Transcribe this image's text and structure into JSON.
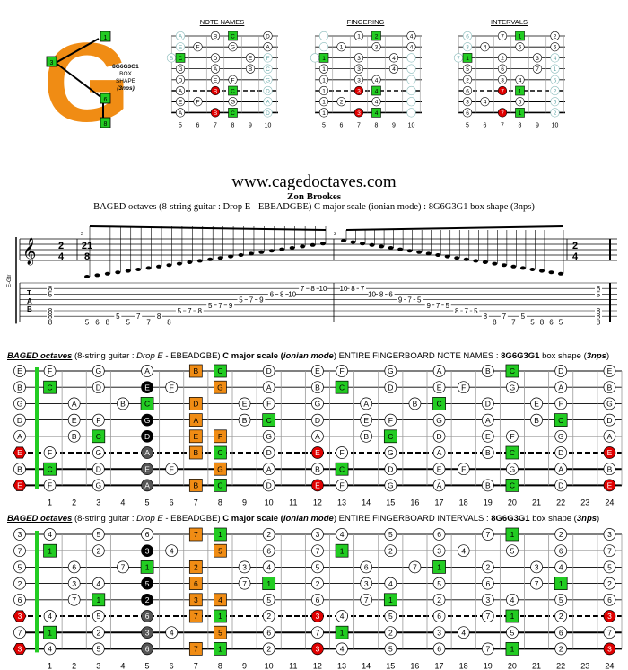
{
  "logo": {
    "letter": "G",
    "code": "8G6G3G1",
    "line2": "BOX",
    "line3": "SHAPE",
    "line4": "(3nps)",
    "markers": [
      "1",
      "3",
      "6",
      "8"
    ]
  },
  "mini_diagrams": [
    {
      "title": "NOTE NAMES",
      "kind": "notes"
    },
    {
      "title": "FINGERING",
      "kind": "fingers"
    },
    {
      "title": "INTERVALS",
      "kind": "intervals"
    }
  ],
  "mini_frets": [
    "5",
    "6",
    "7",
    "8",
    "9",
    "10"
  ],
  "header": {
    "site": "www.cagedoctaves.com",
    "author": "Zon Brookes",
    "subtitle": "BAGED octaves (8-string guitar : Drop E - EBEADGBE) C major scale (ionian mode) : 8G6G3G1 box shape (3nps)"
  },
  "staff": {
    "time_sig": "2/4",
    "tuplet": "21/8",
    "clef_label": "E-Gtr",
    "tab_label": "TAB",
    "bar2": "2",
    "bar3": "3",
    "tab_asc": [
      {
        "s": 7,
        "f": "5"
      },
      {
        "s": 7,
        "f": "6"
      },
      {
        "s": 7,
        "f": "8"
      },
      {
        "s": 6,
        "f": "5"
      },
      {
        "s": 7,
        "f": "5"
      },
      {
        "s": 6,
        "f": "7"
      },
      {
        "s": 7,
        "f": "7"
      },
      {
        "s": 6,
        "f": "8"
      },
      {
        "s": 7,
        "f": "8"
      },
      {
        "s": 5,
        "f": "5"
      },
      {
        "s": 5,
        "f": "7"
      },
      {
        "s": 5,
        "f": "8"
      },
      {
        "s": 4,
        "f": "5"
      },
      {
        "s": 4,
        "f": "7"
      },
      {
        "s": 4,
        "f": "9"
      },
      {
        "s": 3,
        "f": "5"
      },
      {
        "s": 3,
        "f": "7"
      },
      {
        "s": 3,
        "f": "9"
      },
      {
        "s": 2,
        "f": "6"
      },
      {
        "s": 2,
        "f": "8"
      },
      {
        "s": 2,
        "f": "10"
      },
      {
        "s": 1,
        "f": "7"
      },
      {
        "s": 1,
        "f": "8"
      },
      {
        "s": 1,
        "f": "10"
      }
    ],
    "tab_desc": [
      {
        "s": 1,
        "f": "10"
      },
      {
        "s": 1,
        "f": "8"
      },
      {
        "s": 1,
        "f": "7"
      },
      {
        "s": 2,
        "f": "10"
      },
      {
        "s": 2,
        "f": "8"
      },
      {
        "s": 2,
        "f": "6"
      },
      {
        "s": 3,
        "f": "9"
      },
      {
        "s": 3,
        "f": "7"
      },
      {
        "s": 3,
        "f": "5"
      },
      {
        "s": 4,
        "f": "9"
      },
      {
        "s": 4,
        "f": "7"
      },
      {
        "s": 4,
        "f": "5"
      },
      {
        "s": 5,
        "f": "8"
      },
      {
        "s": 5,
        "f": "7"
      },
      {
        "s": 5,
        "f": "5"
      },
      {
        "s": 6,
        "f": "8"
      },
      {
        "s": 7,
        "f": "8"
      },
      {
        "s": 6,
        "f": "7"
      },
      {
        "s": 7,
        "f": "7"
      },
      {
        "s": 6,
        "f": "5"
      },
      {
        "s": 7,
        "f": "5"
      },
      {
        "s": 7,
        "f": "8"
      },
      {
        "s": 7,
        "f": "6"
      },
      {
        "s": 7,
        "f": "5"
      }
    ],
    "tab_end_chord": [
      {
        "s": 1,
        "f": "8"
      },
      {
        "s": 2,
        "f": "5"
      },
      {
        "s": 5,
        "f": "8"
      },
      {
        "s": 6,
        "f": "8"
      },
      {
        "s": 7,
        "f": "8"
      }
    ]
  },
  "caption_notes": {
    "a": "BAGED octaves",
    "b": " (8-string guitar : ",
    "c": "Drop E",
    "d": " - EBEADGBE) ",
    "e": "C major scale",
    "f": " (",
    "g": "ionian mode",
    "h": ") ENTIRE FINGERBOARD NOTE NAMES : ",
    "i": "8G6G3G1",
    "j": " box shape (",
    "k": "3nps",
    "l": ")"
  },
  "caption_intervals": {
    "a": "BAGED octaves",
    "b": " (8-string guitar : ",
    "c": "Drop E",
    "d": " - EBEADGBE) ",
    "e": "C major scale",
    "f": " (",
    "g": "ionian mode",
    "h": ") ENTIRE FINGERBOARD INTERVALS : ",
    "i": "8G6G3G1",
    "j": " box shape (",
    "k": "3nps",
    "l": ")"
  },
  "open_notes": [
    "E",
    "B",
    "G",
    "D",
    "A",
    "E",
    "B",
    "E"
  ],
  "open_intervals": [
    "3",
    "7",
    "5",
    "2",
    "6",
    "3",
    "7",
    "3"
  ],
  "fret_numbers": [
    "1",
    "2",
    "3",
    "4",
    "5",
    "6",
    "7",
    "8",
    "9",
    "10",
    "11",
    "12",
    "13",
    "14",
    "15",
    "16",
    "17",
    "18",
    "19",
    "20",
    "21",
    "22",
    "23",
    "24"
  ],
  "colors": {
    "root": "#e00000",
    "box_root": "#22cc22",
    "orange": "#f08c14",
    "black": "#000000",
    "grey": "#555555",
    "logo": "#f08c14",
    "nut": "#22cc22"
  }
}
